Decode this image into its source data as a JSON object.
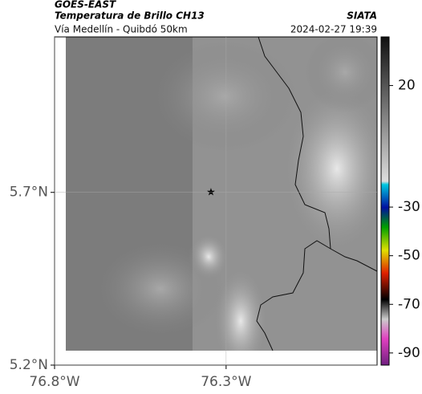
{
  "header": {
    "satellite": "GOES-EAST",
    "product": "Temperatura de Brillo CH13",
    "location": "Vía Medellín - Quibdó 50km",
    "agency": "SIATA",
    "datetime": "2024-02-27 19:39"
  },
  "map": {
    "xlim": [
      -76.8,
      -75.86
    ],
    "ylim": [
      5.2,
      6.15
    ],
    "xticks": [
      {
        "value": -76.8,
        "label": "76.8°W"
      },
      {
        "value": -76.3,
        "label": "76.3°W"
      }
    ],
    "yticks": [
      {
        "value": 5.2,
        "label": "5.2°N"
      },
      {
        "value": 5.7,
        "label": "5.7°N"
      }
    ],
    "grid": true
  },
  "colorbar": {
    "lim": [
      -95,
      40
    ],
    "ticks": [
      20,
      -30,
      -50,
      -70,
      -90
    ]
  }
}
